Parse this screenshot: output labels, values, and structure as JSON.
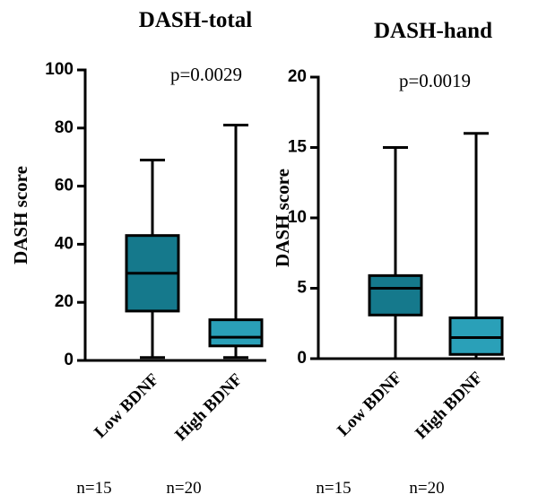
{
  "chart_data": [
    {
      "type": "box",
      "title": "DASH-total",
      "annotation": "p=0.0029",
      "ylabel": "DASH score",
      "categories": [
        "Low BDNF",
        "High BDNF"
      ],
      "n_labels": [
        "n=15",
        "n=20"
      ],
      "ylim": [
        0,
        100
      ],
      "yticks": [
        0,
        20,
        40,
        60,
        80,
        100
      ],
      "boxes": [
        {
          "color": "#15798c",
          "min": 1,
          "q1": 17,
          "median": 30,
          "q3": 43,
          "max": 69
        },
        {
          "color": "#2aa0b8",
          "min": 1,
          "q1": 5,
          "median": 8,
          "q3": 14,
          "max": 81
        }
      ]
    },
    {
      "type": "box",
      "title": "DASH-hand",
      "annotation": "p=0.0019",
      "ylabel": "DASH score",
      "categories": [
        "Low BDNF",
        "High BDNF"
      ],
      "n_labels": [
        "n=15",
        "n=20"
      ],
      "ylim": [
        0,
        20
      ],
      "yticks": [
        0,
        5,
        10,
        15,
        20
      ],
      "boxes": [
        {
          "color": "#15798c",
          "min": 0,
          "q1": 3.1,
          "median": 5,
          "q3": 5.9,
          "max": 15
        },
        {
          "color": "#2aa0b8",
          "min": 0,
          "q1": 0.3,
          "median": 1.5,
          "q3": 2.9,
          "max": 16
        }
      ]
    }
  ]
}
